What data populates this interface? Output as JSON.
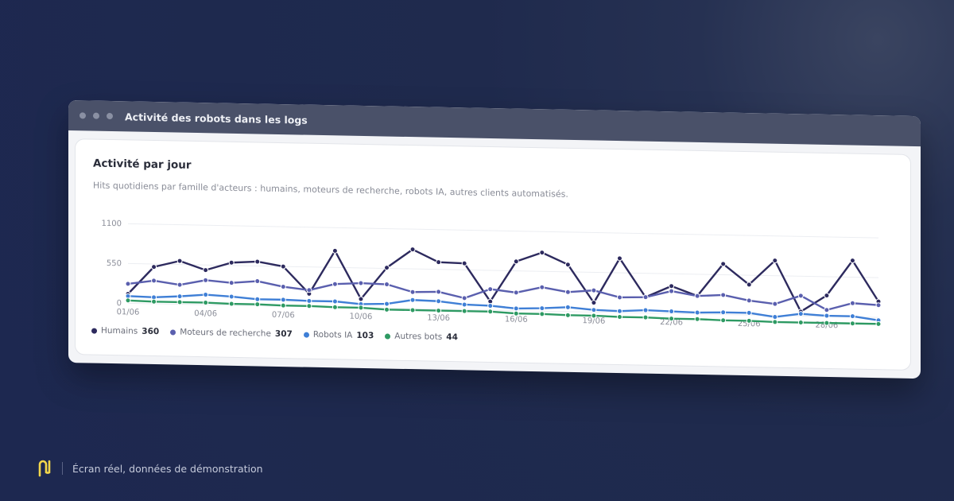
{
  "window": {
    "title": "Activité des robots dans les logs"
  },
  "card": {
    "title": "Activité par jour",
    "subtitle": "Hits quotidiens par famille d'acteurs : humains, moteurs de recherche, robots IA, autres clients automatisés."
  },
  "legend": [
    {
      "name": "Humains",
      "value": "360",
      "color": "#2d2a5e"
    },
    {
      "name": "Moteurs de recherche",
      "value": "307",
      "color": "#5a5fae"
    },
    {
      "name": "Robots IA",
      "value": "103",
      "color": "#3f7fd6"
    },
    {
      "name": "Autres bots",
      "value": "44",
      "color": "#2e9a63"
    }
  ],
  "chart_data": {
    "type": "line",
    "title": "Activité par jour",
    "x": [
      "01/06",
      "02/06",
      "03/06",
      "04/06",
      "05/06",
      "06/06",
      "07/06",
      "08/06",
      "09/06",
      "10/06",
      "11/06",
      "12/06",
      "13/06",
      "14/06",
      "15/06",
      "16/06",
      "17/06",
      "18/06",
      "19/06",
      "20/06",
      "21/06",
      "22/06",
      "23/06",
      "24/06",
      "25/06",
      "26/06",
      "27/06",
      "28/06",
      "29/06",
      "30/06"
    ],
    "x_tick_labels": [
      "01/06",
      "04/06",
      "07/06",
      "10/06",
      "13/06",
      "16/06",
      "19/06",
      "22/06",
      "25/06",
      "28/06"
    ],
    "yticks": [
      0,
      550,
      1100
    ],
    "ylim": [
      0,
      1100
    ],
    "grid": true,
    "legend_position": "bottom-left",
    "series": [
      {
        "name": "Humains",
        "color": "#2d2a5e",
        "values": [
          130,
          510,
          600,
          480,
          590,
          610,
          550,
          180,
          780,
          120,
          560,
          820,
          650,
          640,
          120,
          680,
          810,
          650,
          130,
          750,
          220,
          380,
          250,
          700,
          420,
          760,
          60,
          290,
          780,
          220
        ]
      },
      {
        "name": "Moteurs de recherche",
        "color": "#5a5fae",
        "values": [
          270,
          320,
          270,
          340,
          310,
          340,
          270,
          230,
          320,
          340,
          330,
          230,
          240,
          160,
          290,
          250,
          330,
          270,
          300,
          210,
          220,
          310,
          250,
          270,
          200,
          160,
          280,
          90,
          190,
          170
        ]
      },
      {
        "name": "Robots IA",
        "color": "#3f7fd6",
        "values": [
          100,
          90,
          110,
          140,
          120,
          90,
          90,
          80,
          80,
          50,
          60,
          120,
          110,
          70,
          60,
          30,
          40,
          60,
          30,
          20,
          40,
          30,
          20,
          30,
          30,
          -20,
          30,
          10,
          10,
          -40
        ]
      },
      {
        "name": "Autres bots",
        "color": "#2e9a63",
        "values": [
          40,
          30,
          30,
          30,
          20,
          20,
          10,
          10,
          0,
          0,
          -20,
          -20,
          -20,
          -20,
          -20,
          -40,
          -40,
          -50,
          -50,
          -60,
          -60,
          -70,
          -70,
          -80,
          -80,
          -90,
          -90,
          -90,
          -90,
          -90
        ]
      }
    ]
  },
  "footer": {
    "text": "Écran réel, données de démonstration"
  }
}
